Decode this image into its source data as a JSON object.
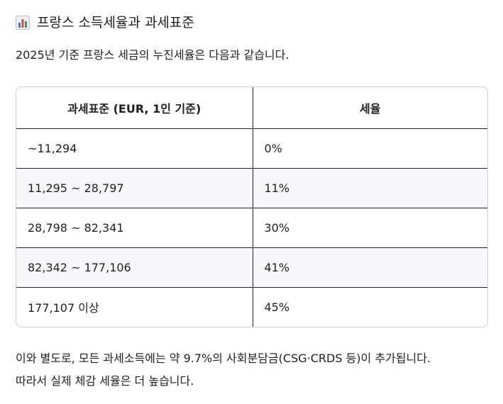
{
  "heading": {
    "icon": "bar-chart-icon",
    "title": "프랑스 소득세율과 과세표준"
  },
  "intro": "2025년 기준 프랑스 세금의 누진세율은 다음과 같습니다.",
  "table": {
    "headers": [
      "과세표준 (EUR, 1인 기준)",
      "세율"
    ],
    "rows": [
      {
        "range": "~11,294",
        "rate": "0%"
      },
      {
        "range": "11,295 ~ 28,797",
        "rate": "11%"
      },
      {
        "range": "28,798 ~ 82,341",
        "rate": "30%"
      },
      {
        "range": "82,342 ~ 177,106",
        "rate": "41%"
      },
      {
        "range": "177,107 이상",
        "rate": "45%"
      }
    ]
  },
  "footer": {
    "line1": "이와 별도로, 모든 과세소득에는 약 9.7%의 사회분담금(CSG·CRDS 등)이 추가됩니다.",
    "line2": "따라서 실제 체감 세율은 더 높습니다."
  },
  "colors": {
    "text": "#1f1f1f",
    "stripe": "#f6f8fb",
    "icon_bars": [
      "#4a76c4",
      "#d84b3f",
      "#3c9a5c"
    ]
  }
}
